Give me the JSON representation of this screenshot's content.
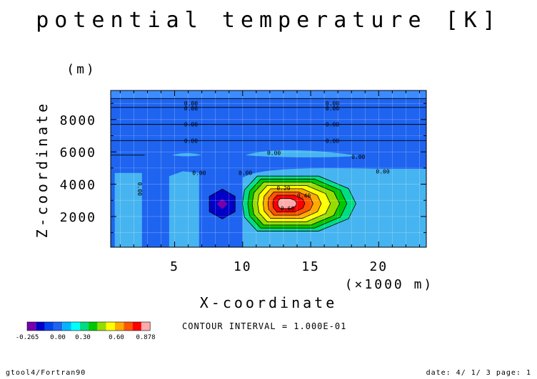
{
  "chart_data": {
    "type": "heatmap",
    "title": "potential temperature [K]",
    "xlabel": "X-coordinate",
    "x_unit": "(×1000 m)",
    "ylabel": "Z-coordinate",
    "y_unit": "(m)",
    "xlim": [
      0.3,
      23.5
    ],
    "ylim": [
      100,
      9800
    ],
    "x_ticks": [
      "5",
      "10",
      "15",
      "20"
    ],
    "x_tick_values": [
      5,
      10,
      15,
      20
    ],
    "y_ticks": [
      "2000",
      "4000",
      "6000",
      "8000"
    ],
    "y_tick_values": [
      2000,
      4000,
      6000,
      8000
    ],
    "grid": true,
    "contour_interval_text": "CONTOUR INTERVAL = 1.000E-01",
    "contour_labels": [
      {
        "text": "0.00",
        "x": 6.2,
        "y": 9000
      },
      {
        "text": "0.00",
        "x": 6.2,
        "y": 8700
      },
      {
        "text": "0.00",
        "x": 6.2,
        "y": 7700
      },
      {
        "text": "0.00",
        "x": 6.2,
        "y": 6700
      },
      {
        "text": "0.00",
        "x": 16.6,
        "y": 9000
      },
      {
        "text": "0.00",
        "x": 16.6,
        "y": 8700
      },
      {
        "text": "0.00",
        "x": 16.6,
        "y": 7700
      },
      {
        "text": "0.00",
        "x": 16.6,
        "y": 6700
      },
      {
        "text": "0.00",
        "x": 12.3,
        "y": 5950
      },
      {
        "text": "0.00",
        "x": 18.5,
        "y": 5700
      },
      {
        "text": "0.00",
        "x": 20.3,
        "y": 4800
      },
      {
        "text": "0.00",
        "x": 6.8,
        "y": 4700
      },
      {
        "text": "0.00",
        "x": 10.2,
        "y": 4700
      },
      {
        "text": "0.20",
        "x": 13.0,
        "y": 3750
      },
      {
        "text": "0.40",
        "x": 14.5,
        "y": 3300
      },
      {
        "text": "0.60",
        "x": 13.3,
        "y": 2500
      }
    ],
    "colorbar": {
      "levels": [
        "-0.265",
        "0.00",
        "0.30",
        "0.60",
        "0.878"
      ],
      "colors": [
        "#7700aa",
        "#0000c8",
        "#0044ee",
        "#1e64f0",
        "#00b4ff",
        "#00ffff",
        "#00dc82",
        "#00c800",
        "#96dc00",
        "#ffff00",
        "#ffaa00",
        "#ff5500",
        "#ff0000",
        "#ffaaaa"
      ]
    },
    "fields": {
      "background": "#1e64f0",
      "top_band": "#3c8cff",
      "light": "#46b4f0",
      "dark": "#0000c8",
      "negative_core": "#7700aa"
    }
  },
  "footer": {
    "left": "gtool4/Fortran90",
    "right": "date: 4/ 1/ 3 page: 1"
  }
}
